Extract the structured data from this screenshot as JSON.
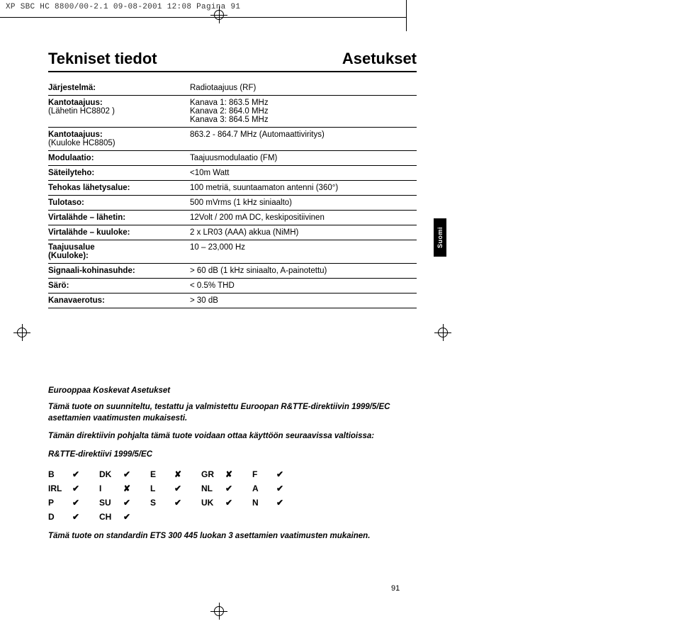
{
  "header_strip": "XP SBC HC 8800/00-2.1  09-08-2001 12:08  Pagina 91",
  "titles": {
    "left": "Tekniset tiedot",
    "right": "Asetukset"
  },
  "side_tab": "Suomi",
  "page_number": "91",
  "specs": [
    {
      "label": "Järjestelmä:",
      "sub": "",
      "value": "Radiotaajuus (RF)"
    },
    {
      "label": "Kantotaajuus:",
      "sub": "(Lähetin HC8802 )",
      "value": "Kanava 1: 863.5 MHz\nKanava 2: 864.0 MHz\nKanava 3: 864.5 MHz"
    },
    {
      "label": "Kantotaajuus:",
      "sub": "(Kuuloke HC8805)",
      "value": "863.2 - 864.7 MHz (Automaattiviritys)"
    },
    {
      "label": "Modulaatio:",
      "sub": "",
      "value": "Taajuusmodulaatio  (FM)"
    },
    {
      "label": "Säteilyteho:",
      "sub": "",
      "value": "<10m Watt"
    },
    {
      "label": "Tehokas lähetysalue:",
      "sub": "",
      "value": "100 metriä, suuntaamaton antenni (360°)"
    },
    {
      "label": "Tulotaso:",
      "sub": "",
      "value": "500 mVrms (1 kHz siniaalto)"
    },
    {
      "label": "Virtalähde – lähetin:",
      "sub": "",
      "value": "12Volt / 200 mA DC, keskipositiivinen"
    },
    {
      "label": "Virtalähde – kuuloke:",
      "sub": "",
      "value": "2 x LR03 (AAA) akkua (NiMH)"
    },
    {
      "label": "Taajuusalue\n(Kuuloke):",
      "sub": "",
      "value": "10 – 23,000 Hz"
    },
    {
      "label": "Signaali-kohinasuhde:",
      "sub": "",
      "value": "> 60 dB (1 kHz siniaalto, A-painotettu)"
    },
    {
      "label": "Särö:",
      "sub": "",
      "value": "< 0.5% THD"
    },
    {
      "label": "Kanavaerotus:",
      "sub": "",
      "value": "> 30 dB"
    }
  ],
  "reg": {
    "heading": "Eurooppaa Koskevat Asetukset",
    "p1": "Tämä tuote on suunniteltu, testattu ja valmistettu Euroopan R&TTE-direktiivin 1999/5/EC asettamien vaatimusten mukaisesti.",
    "p2": "Tämän direktiivin pohjalta tämä tuote voidaan ottaa käyttöön seuraavissa valtioissa:",
    "directive": "R&TTE-direktiivi 1999/5/EC",
    "footer": "Tämä tuote on standardin ETS 300 445 luokan 3 asettamien vaatimusten mukainen."
  },
  "countries": [
    [
      [
        "B",
        "✔"
      ],
      [
        "DK",
        "✔"
      ],
      [
        "E",
        "✘"
      ],
      [
        "GR",
        "✘"
      ],
      [
        "F",
        "✔"
      ]
    ],
    [
      [
        "IRL",
        "✔"
      ],
      [
        "I",
        "✘"
      ],
      [
        "L",
        "✔"
      ],
      [
        "NL",
        "✔"
      ],
      [
        "A",
        "✔"
      ]
    ],
    [
      [
        "P",
        "✔"
      ],
      [
        "SU",
        "✔"
      ],
      [
        "S",
        "✔"
      ],
      [
        "UK",
        "✔"
      ],
      [
        "N",
        "✔"
      ]
    ],
    [
      [
        "D",
        "✔"
      ],
      [
        "CH",
        "✔"
      ]
    ]
  ]
}
